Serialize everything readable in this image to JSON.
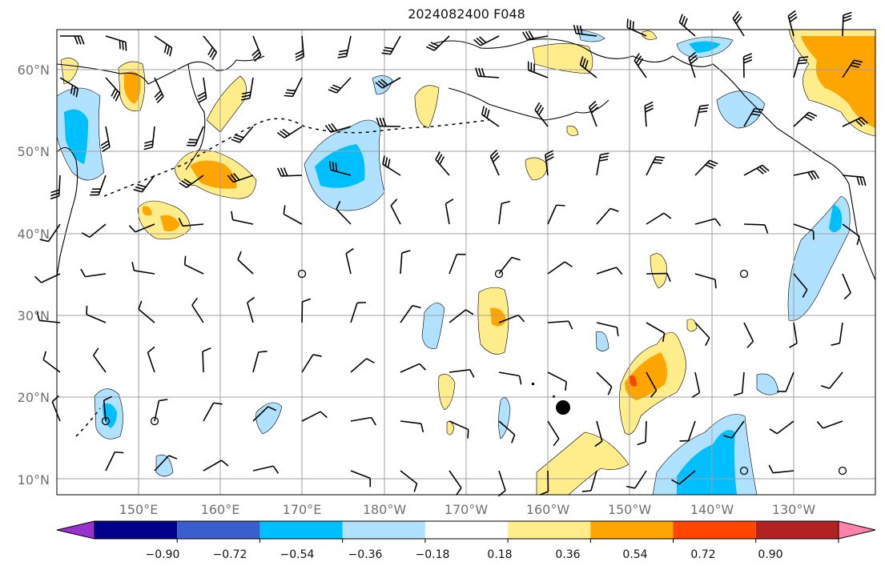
{
  "title": "2024082400 F048",
  "lat_labels": [
    "10°N",
    "20°N",
    "30°N",
    "40°N",
    "50°N",
    "60°N"
  ],
  "lon_labels": [
    "150°E",
    "160°E",
    "170°E",
    "180°W",
    "170°W",
    "160°W",
    "150°W",
    "140°W",
    "130°W"
  ],
  "colorbar": {
    "colors": [
      "#9932cc",
      "#00008b",
      "#3a5fcd",
      "#00bfff",
      "#b0e2ff",
      "#ffffff",
      "#ffec8b",
      "#ffa500",
      "#ff4500",
      "#b22222",
      "#ff82ab"
    ],
    "tick_labels": [
      "−0.90",
      "−0.72",
      "−0.54",
      "−0.36",
      "−0.18",
      "0.18",
      "0.36",
      "0.54",
      "0.72",
      "0.90"
    ]
  },
  "colors": {
    "grid": "#a0a0a0",
    "coast": "#000000",
    "neg_light": "#b0e2ff",
    "neg_mid": "#00bfff",
    "pos_light": "#ffec8b",
    "pos_mid": "#ffa500",
    "pos_high": "#ff4500"
  }
}
